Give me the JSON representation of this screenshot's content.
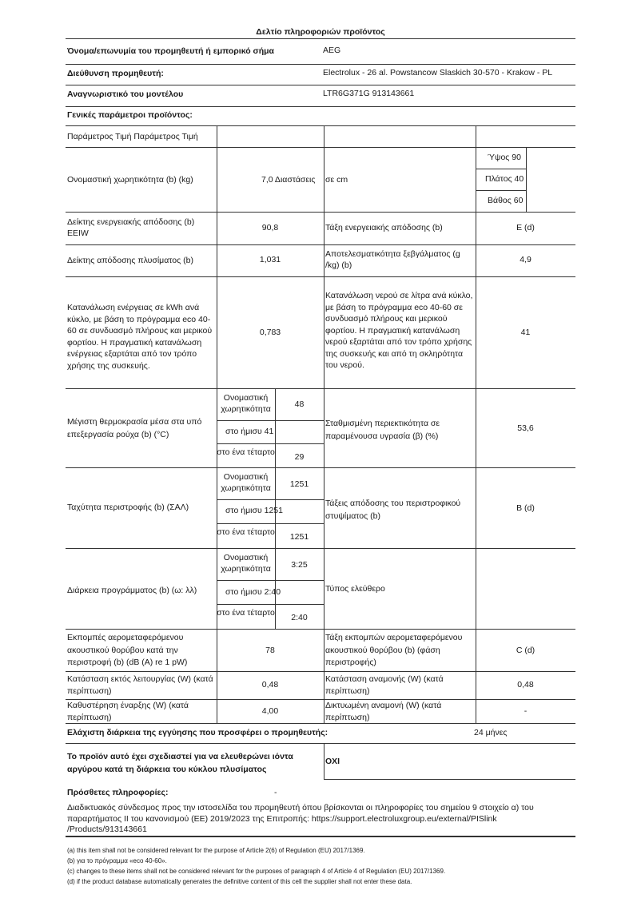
{
  "title": "Δελτίο πληροφοριών προϊόντος",
  "header": {
    "supplier_label": "Όνομα/επωνυμία του προμηθευτή ή εμπορικό σήμα",
    "supplier_value": "AEG",
    "address_label": "Διεύθυνση προμηθευτή:",
    "address_value": "Electrolux - 26 al. Powstancow Slaskich 30-570 - Krakow - PL",
    "model_label": "Αναγνωριστικό του μοντέλου",
    "model_value": "LTR6G371G 913143661",
    "general_label": "Γενικές παράμετροι προϊόντος:"
  },
  "table": {
    "header_row": "Παράμετρος Τιμή Παράμετρος Τιμή",
    "capacity_label": "Ονομαστική χωρητικότητα (b) (kg)",
    "capacity_value": "7,0 Διαστάσεις",
    "dims_label": "σε cm",
    "height": "Ύψος 90",
    "width": "Πλάτος 40",
    "depth": "Βάθος 60",
    "eei_label": "Δείκτης ενεργειακής απόδοσης (b) EEIW",
    "eei_value": "90,8",
    "eclass_label": "Τάξη ενεργειακής απόδοσης (b)",
    "eclass_value": "E (d)",
    "wash_label": "Δείκτης απόδοσης πλυσίματος (b)",
    "wash_value": "1,031",
    "rinse_label": "Αποτελεσματικότητα ξεβγάλματος (g /kg) (b)",
    "rinse_value": "4,9",
    "energy_label": "Κατανάλωση ενέργειας σε kWh ανά κύκλο, με βάση το πρόγραμμα eco 40-60 σε συνδυασμό πλήρους και μερικού φορτίου. Η πραγματική κατανάλωση ενέργειας εξαρτάται από τον τρόπο χρήσης της συσκευής.",
    "energy_value": "0,783",
    "water_label": "Κατανάλωση νερού σε λίτρα ανά κύκλο, με βάση το πρόγραμμα eco 40-60 σε συνδυασμό πλήρους και μερικού φορτίου. Η πραγματική κατανάλωση νερού εξαρτάται από τον τρόπο χρήσης της συσκευής και από τη σκληρότητα του νερού.",
    "water_value": "41",
    "sub_full": "Ονομαστική χωρητικότητα",
    "sub_half": "στο ήμισυ",
    "sub_quarter": "στο ένα τέταρτο",
    "temp_label": "Μέγιστη θερμοκρασία μέσα στα υπό επεξεργασία ρούχα (b) (°C)",
    "temp_full": "48",
    "temp_half": "41",
    "temp_quarter": "29",
    "moist_label": "Σταθμισμένη περιεκτικότητα σε παραμένουσα υγρασία (β) (%)",
    "moist_value": "53,6",
    "spin_label": "Ταχύτητα περιστροφής (b) (ΣΑΛ)",
    "spin_full": "1251",
    "spin_half": "1251",
    "spin_quarter": "1251",
    "spinclass_label": "Τάξεις απόδοσης του περιστροφικού στυψίματος (b)",
    "spinclass_value": "B (d)",
    "dur_label": "Διάρκεια προγράμματος (b) (ω: λλ)",
    "dur_full": "3:25",
    "dur_half": "2:40",
    "dur_quarter": "2:40",
    "type_label": "Τύπος ελεύθερο",
    "noise_label": "Εκπομπές αερομεταφερόμενου ακουστικού θορύβου κατά την περιστροφή (b) (dB (A) re 1 pW)",
    "noise_value": "78",
    "noiseclass_label": "Τάξη εκπομπών αερομεταφερόμενου ακουστικού θορύβου (b) (φάση περιστροφής)",
    "noiseclass_value": "C (d)",
    "off_label": "Κατάσταση εκτός λειτουργίας (W) (κατά περίπτωση)",
    "off_value": "0,48",
    "standby_label": "Κατάσταση αναμονής (W) (κατά περίπτωση)",
    "standby_value": "0,48",
    "delay_label": "Καθυστέρηση έναρξης (W) (κατά περίπτωση)",
    "delay_value": "4,00",
    "network_label": "Δικτυωμένη αναμονή (W) (κατά περίπτωση)",
    "network_value": "-"
  },
  "warranty_label": "Ελάχιστη διάρκεια της εγγύησης που προσφέρει ο προμηθευτής:",
  "warranty_value": "24 μήνες",
  "silver_label": "Το προϊόν αυτό έχει σχεδιαστεί για να ελευθερώνει ιόντα αργύρου κατά τη διάρκεια του κύκλου πλυσίματος",
  "silver_value": "OXI",
  "additional_label": "Πρόσθετες πληροφορίες:",
  "additional_value": "-",
  "link_text": "Διαδικτυακός σύνδεσμος προς την ιστοσελίδα του προμηθευτή όπου βρίσκονται οι πληροφορίες του σημείου 9 στοιχείο α) του παραρτήματος II του κανονισμού (ΕΕ) 2019/2023 της Επιτροπής: https://support.electroluxgroup.eu/external/PISlink /Products/913143661",
  "footnotes": [
    "(a) this item shall not be considered relevant for the purpose of Article 2(6) of Regulation (EU) 2017/1369.",
    "(b) για το πρόγραμμα «eco 40-60».",
    "(c) changes to these items shall not be considered relevant for the purposes of paragraph 4 of Article 4 of Regulation (EU) 2017/1369.",
    "(d) if the product database automatically generates the definitive content of this cell the supplier shall not enter these data."
  ]
}
